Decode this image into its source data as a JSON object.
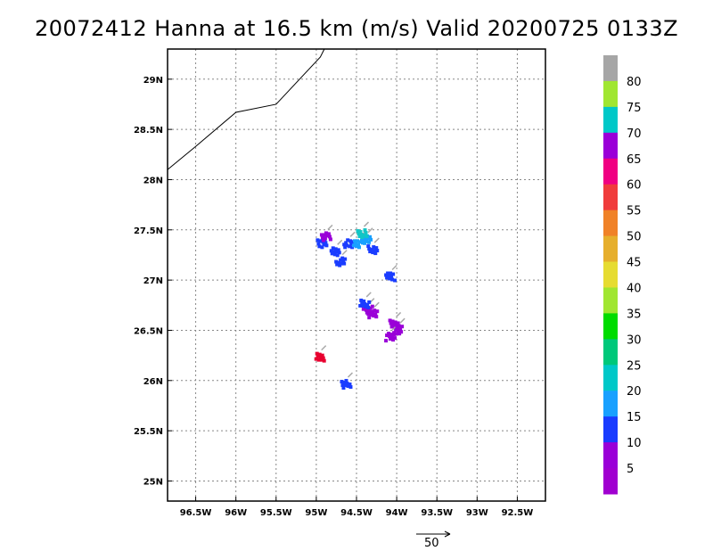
{
  "title": "20072412 Hanna at 16.5 km (m/s) Valid 20200725 0133Z",
  "map": {
    "lon_range": [
      -96.85,
      -92.15
    ],
    "lat_range": [
      24.8,
      29.3
    ],
    "lon_ticks": [
      {
        "value": -96.5,
        "label": "96.5W"
      },
      {
        "value": -96.0,
        "label": "96W"
      },
      {
        "value": -95.5,
        "label": "95.5W"
      },
      {
        "value": -95.0,
        "label": "95W"
      },
      {
        "value": -94.5,
        "label": "94.5W"
      },
      {
        "value": -94.0,
        "label": "94W"
      },
      {
        "value": -93.5,
        "label": "93.5W"
      },
      {
        "value": -93.0,
        "label": "93W"
      },
      {
        "value": -92.5,
        "label": "92.5W"
      }
    ],
    "lat_ticks": [
      {
        "value": 29.0,
        "label": "29N"
      },
      {
        "value": 28.5,
        "label": "28.5N"
      },
      {
        "value": 28.0,
        "label": "28N"
      },
      {
        "value": 27.5,
        "label": "27.5N"
      },
      {
        "value": 27.0,
        "label": "27N"
      },
      {
        "value": 26.5,
        "label": "26.5N"
      },
      {
        "value": 26.0,
        "label": "26N"
      },
      {
        "value": 25.5,
        "label": "25.5N"
      },
      {
        "value": 25.0,
        "label": "25N"
      }
    ],
    "coastline": [
      [
        -96.85,
        28.1
      ],
      [
        -96.5,
        28.33
      ],
      [
        -96.0,
        28.67
      ],
      [
        -95.5,
        28.75
      ],
      [
        -94.95,
        29.22
      ],
      [
        -94.9,
        29.3
      ]
    ],
    "coast_color": "#000000",
    "grid": true
  },
  "wind_blobs": [
    {
      "lon": -94.95,
      "lat": 27.38,
      "color": "#1a3cff"
    },
    {
      "lon": -94.9,
      "lat": 27.45,
      "color": "#9a00d8"
    },
    {
      "lon": -94.78,
      "lat": 27.3,
      "color": "#1a3cff"
    },
    {
      "lon": -94.72,
      "lat": 27.2,
      "color": "#1a3cff"
    },
    {
      "lon": -94.62,
      "lat": 27.38,
      "color": "#1a3cff"
    },
    {
      "lon": -94.5,
      "lat": 27.38,
      "color": "#19a0ff"
    },
    {
      "lon": -94.4,
      "lat": 27.42,
      "color": "#19a0ff"
    },
    {
      "lon": -94.32,
      "lat": 27.32,
      "color": "#1a3cff"
    },
    {
      "lon": -94.45,
      "lat": 27.48,
      "color": "#11c6c6"
    },
    {
      "lon": -94.1,
      "lat": 27.05,
      "color": "#1a3cff"
    },
    {
      "lon": -94.38,
      "lat": 26.72,
      "color": "#9a00d8"
    },
    {
      "lon": -94.32,
      "lat": 26.68,
      "color": "#9a00d8"
    },
    {
      "lon": -94.42,
      "lat": 26.78,
      "color": "#1a3cff"
    },
    {
      "lon": -94.0,
      "lat": 26.52,
      "color": "#9a00d8"
    },
    {
      "lon": -94.1,
      "lat": 26.45,
      "color": "#9a00d8"
    },
    {
      "lon": -94.05,
      "lat": 26.58,
      "color": "#9a00d8"
    },
    {
      "lon": -94.65,
      "lat": 25.98,
      "color": "#1a3cff"
    },
    {
      "lon": -94.98,
      "lat": 26.25,
      "color": "#e8002f"
    }
  ],
  "colorbar": {
    "segments": [
      {
        "color": "#a6a6a6"
      },
      {
        "color": "#a0e632"
      },
      {
        "color": "#00c8c8"
      },
      {
        "color": "#9a00d8"
      },
      {
        "color": "#f00082"
      },
      {
        "color": "#f03c3c"
      },
      {
        "color": "#f08228"
      },
      {
        "color": "#e6af2d"
      },
      {
        "color": "#e6dc32"
      },
      {
        "color": "#a0e632"
      },
      {
        "color": "#00dc00"
      },
      {
        "color": "#00c87a"
      },
      {
        "color": "#00c8c8"
      },
      {
        "color": "#19a0ff"
      },
      {
        "color": "#1a3cff"
      },
      {
        "color": "#9a00d8"
      },
      {
        "color": "#a000d0"
      }
    ],
    "labels": [
      "80",
      "75",
      "70",
      "65",
      "60",
      "55",
      "50",
      "45",
      "40",
      "35",
      "30",
      "25",
      "20",
      "15",
      "10",
      "5"
    ]
  },
  "scale_vector": {
    "label": "50"
  }
}
